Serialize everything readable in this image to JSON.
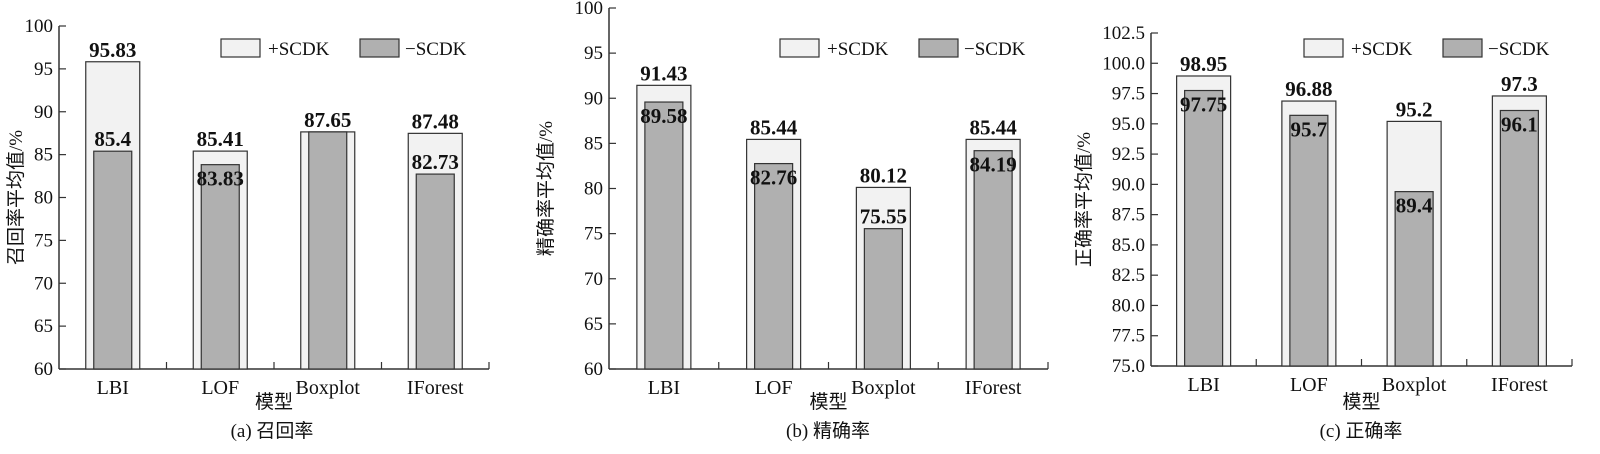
{
  "legend": [
    "+SCDK",
    "−SCDK"
  ],
  "colors": {
    "plus": "#f2f2f2",
    "minus": "#b0b0b0",
    "stroke": "#333333"
  },
  "chart_data": [
    {
      "type": "bar",
      "caption": "(a) 召回率",
      "xlabel": "模型",
      "ylabel": "召回率平均值/%",
      "categories": [
        "LBI",
        "LOF",
        "Boxplot",
        "IForest"
      ],
      "ylim": [
        60,
        100
      ],
      "yticks": [
        "60",
        "65",
        "70",
        "75",
        "80",
        "85",
        "90",
        "95",
        "100"
      ],
      "series": [
        {
          "name": "+SCDK",
          "values": [
            95.83,
            85.41,
            87.65,
            87.48
          ],
          "labels": [
            "95.83",
            "85.41",
            "87.65",
            "87.48"
          ]
        },
        {
          "name": "−SCDK",
          "values": [
            85.4,
            83.83,
            87.65,
            82.73
          ],
          "labels": [
            "85.4",
            "83.83",
            "",
            "82.73"
          ]
        }
      ],
      "legend_position": "top-right"
    },
    {
      "type": "bar",
      "caption": "(b) 精确率",
      "xlabel": "模型",
      "ylabel": "精确率平均值/%",
      "categories": [
        "LBI",
        "LOF",
        "Boxplot",
        "IForest"
      ],
      "ylim": [
        60,
        100
      ],
      "yticks": [
        "60",
        "65",
        "70",
        "75",
        "80",
        "85",
        "90",
        "95",
        "100"
      ],
      "series": [
        {
          "name": "+SCDK",
          "values": [
            91.43,
            85.44,
            80.12,
            85.44
          ],
          "labels": [
            "91.43",
            "85.44",
            "80.12",
            "85.44"
          ]
        },
        {
          "name": "−SCDK",
          "values": [
            89.58,
            82.76,
            75.55,
            84.19
          ],
          "labels": [
            "89.58",
            "82.76",
            "75.55",
            "84.19"
          ]
        }
      ],
      "legend_position": "top-right"
    },
    {
      "type": "bar",
      "caption": "(c) 正确率",
      "xlabel": "模型",
      "ylabel": "正确率平均值/%",
      "categories": [
        "LBI",
        "LOF",
        "Boxplot",
        "IForest"
      ],
      "ylim": [
        75,
        102.5
      ],
      "yticks": [
        "75.0",
        "77.5",
        "80.0",
        "82.5",
        "85.0",
        "87.5",
        "90.0",
        "92.5",
        "95.0",
        "97.5",
        "100.0",
        "102.5"
      ],
      "series": [
        {
          "name": "+SCDK",
          "values": [
            98.95,
            96.88,
            95.2,
            97.3
          ],
          "labels": [
            "98.95",
            "96.88",
            "95.2",
            "97.3"
          ]
        },
        {
          "name": "−SCDK",
          "values": [
            97.75,
            95.7,
            89.4,
            96.1
          ],
          "labels": [
            "97.75",
            "95.7",
            "89.4",
            "96.1"
          ]
        }
      ],
      "legend_position": "top-right"
    }
  ]
}
